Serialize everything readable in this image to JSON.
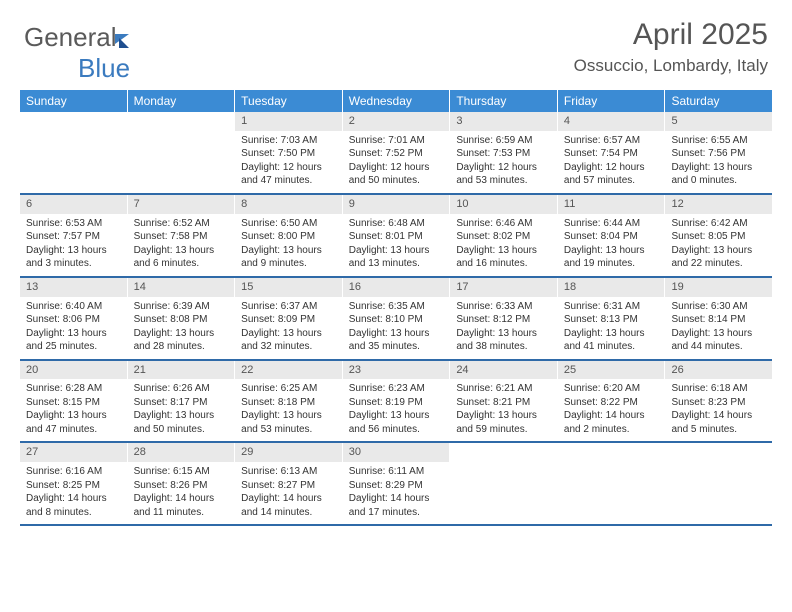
{
  "brand": {
    "part1": "General",
    "part2": "Blue"
  },
  "title": "April 2025",
  "location": "Ossuccio, Lombardy, Italy",
  "colors": {
    "header_bg": "#3b8bd4",
    "header_text": "#ffffff",
    "daynum_bg": "#e9e9e9",
    "rule": "#2f6aa8",
    "text": "#333333"
  },
  "weekdays": [
    "Sunday",
    "Monday",
    "Tuesday",
    "Wednesday",
    "Thursday",
    "Friday",
    "Saturday"
  ],
  "weeks": [
    [
      {
        "n": "",
        "t": ""
      },
      {
        "n": "",
        "t": ""
      },
      {
        "n": "1",
        "t": "Sunrise: 7:03 AM\nSunset: 7:50 PM\nDaylight: 12 hours and 47 minutes."
      },
      {
        "n": "2",
        "t": "Sunrise: 7:01 AM\nSunset: 7:52 PM\nDaylight: 12 hours and 50 minutes."
      },
      {
        "n": "3",
        "t": "Sunrise: 6:59 AM\nSunset: 7:53 PM\nDaylight: 12 hours and 53 minutes."
      },
      {
        "n": "4",
        "t": "Sunrise: 6:57 AM\nSunset: 7:54 PM\nDaylight: 12 hours and 57 minutes."
      },
      {
        "n": "5",
        "t": "Sunrise: 6:55 AM\nSunset: 7:56 PM\nDaylight: 13 hours and 0 minutes."
      }
    ],
    [
      {
        "n": "6",
        "t": "Sunrise: 6:53 AM\nSunset: 7:57 PM\nDaylight: 13 hours and 3 minutes."
      },
      {
        "n": "7",
        "t": "Sunrise: 6:52 AM\nSunset: 7:58 PM\nDaylight: 13 hours and 6 minutes."
      },
      {
        "n": "8",
        "t": "Sunrise: 6:50 AM\nSunset: 8:00 PM\nDaylight: 13 hours and 9 minutes."
      },
      {
        "n": "9",
        "t": "Sunrise: 6:48 AM\nSunset: 8:01 PM\nDaylight: 13 hours and 13 minutes."
      },
      {
        "n": "10",
        "t": "Sunrise: 6:46 AM\nSunset: 8:02 PM\nDaylight: 13 hours and 16 minutes."
      },
      {
        "n": "11",
        "t": "Sunrise: 6:44 AM\nSunset: 8:04 PM\nDaylight: 13 hours and 19 minutes."
      },
      {
        "n": "12",
        "t": "Sunrise: 6:42 AM\nSunset: 8:05 PM\nDaylight: 13 hours and 22 minutes."
      }
    ],
    [
      {
        "n": "13",
        "t": "Sunrise: 6:40 AM\nSunset: 8:06 PM\nDaylight: 13 hours and 25 minutes."
      },
      {
        "n": "14",
        "t": "Sunrise: 6:39 AM\nSunset: 8:08 PM\nDaylight: 13 hours and 28 minutes."
      },
      {
        "n": "15",
        "t": "Sunrise: 6:37 AM\nSunset: 8:09 PM\nDaylight: 13 hours and 32 minutes."
      },
      {
        "n": "16",
        "t": "Sunrise: 6:35 AM\nSunset: 8:10 PM\nDaylight: 13 hours and 35 minutes."
      },
      {
        "n": "17",
        "t": "Sunrise: 6:33 AM\nSunset: 8:12 PM\nDaylight: 13 hours and 38 minutes."
      },
      {
        "n": "18",
        "t": "Sunrise: 6:31 AM\nSunset: 8:13 PM\nDaylight: 13 hours and 41 minutes."
      },
      {
        "n": "19",
        "t": "Sunrise: 6:30 AM\nSunset: 8:14 PM\nDaylight: 13 hours and 44 minutes."
      }
    ],
    [
      {
        "n": "20",
        "t": "Sunrise: 6:28 AM\nSunset: 8:15 PM\nDaylight: 13 hours and 47 minutes."
      },
      {
        "n": "21",
        "t": "Sunrise: 6:26 AM\nSunset: 8:17 PM\nDaylight: 13 hours and 50 minutes."
      },
      {
        "n": "22",
        "t": "Sunrise: 6:25 AM\nSunset: 8:18 PM\nDaylight: 13 hours and 53 minutes."
      },
      {
        "n": "23",
        "t": "Sunrise: 6:23 AM\nSunset: 8:19 PM\nDaylight: 13 hours and 56 minutes."
      },
      {
        "n": "24",
        "t": "Sunrise: 6:21 AM\nSunset: 8:21 PM\nDaylight: 13 hours and 59 minutes."
      },
      {
        "n": "25",
        "t": "Sunrise: 6:20 AM\nSunset: 8:22 PM\nDaylight: 14 hours and 2 minutes."
      },
      {
        "n": "26",
        "t": "Sunrise: 6:18 AM\nSunset: 8:23 PM\nDaylight: 14 hours and 5 minutes."
      }
    ],
    [
      {
        "n": "27",
        "t": "Sunrise: 6:16 AM\nSunset: 8:25 PM\nDaylight: 14 hours and 8 minutes."
      },
      {
        "n": "28",
        "t": "Sunrise: 6:15 AM\nSunset: 8:26 PM\nDaylight: 14 hours and 11 minutes."
      },
      {
        "n": "29",
        "t": "Sunrise: 6:13 AM\nSunset: 8:27 PM\nDaylight: 14 hours and 14 minutes."
      },
      {
        "n": "30",
        "t": "Sunrise: 6:11 AM\nSunset: 8:29 PM\nDaylight: 14 hours and 17 minutes."
      },
      {
        "n": "",
        "t": ""
      },
      {
        "n": "",
        "t": ""
      },
      {
        "n": "",
        "t": ""
      }
    ]
  ]
}
